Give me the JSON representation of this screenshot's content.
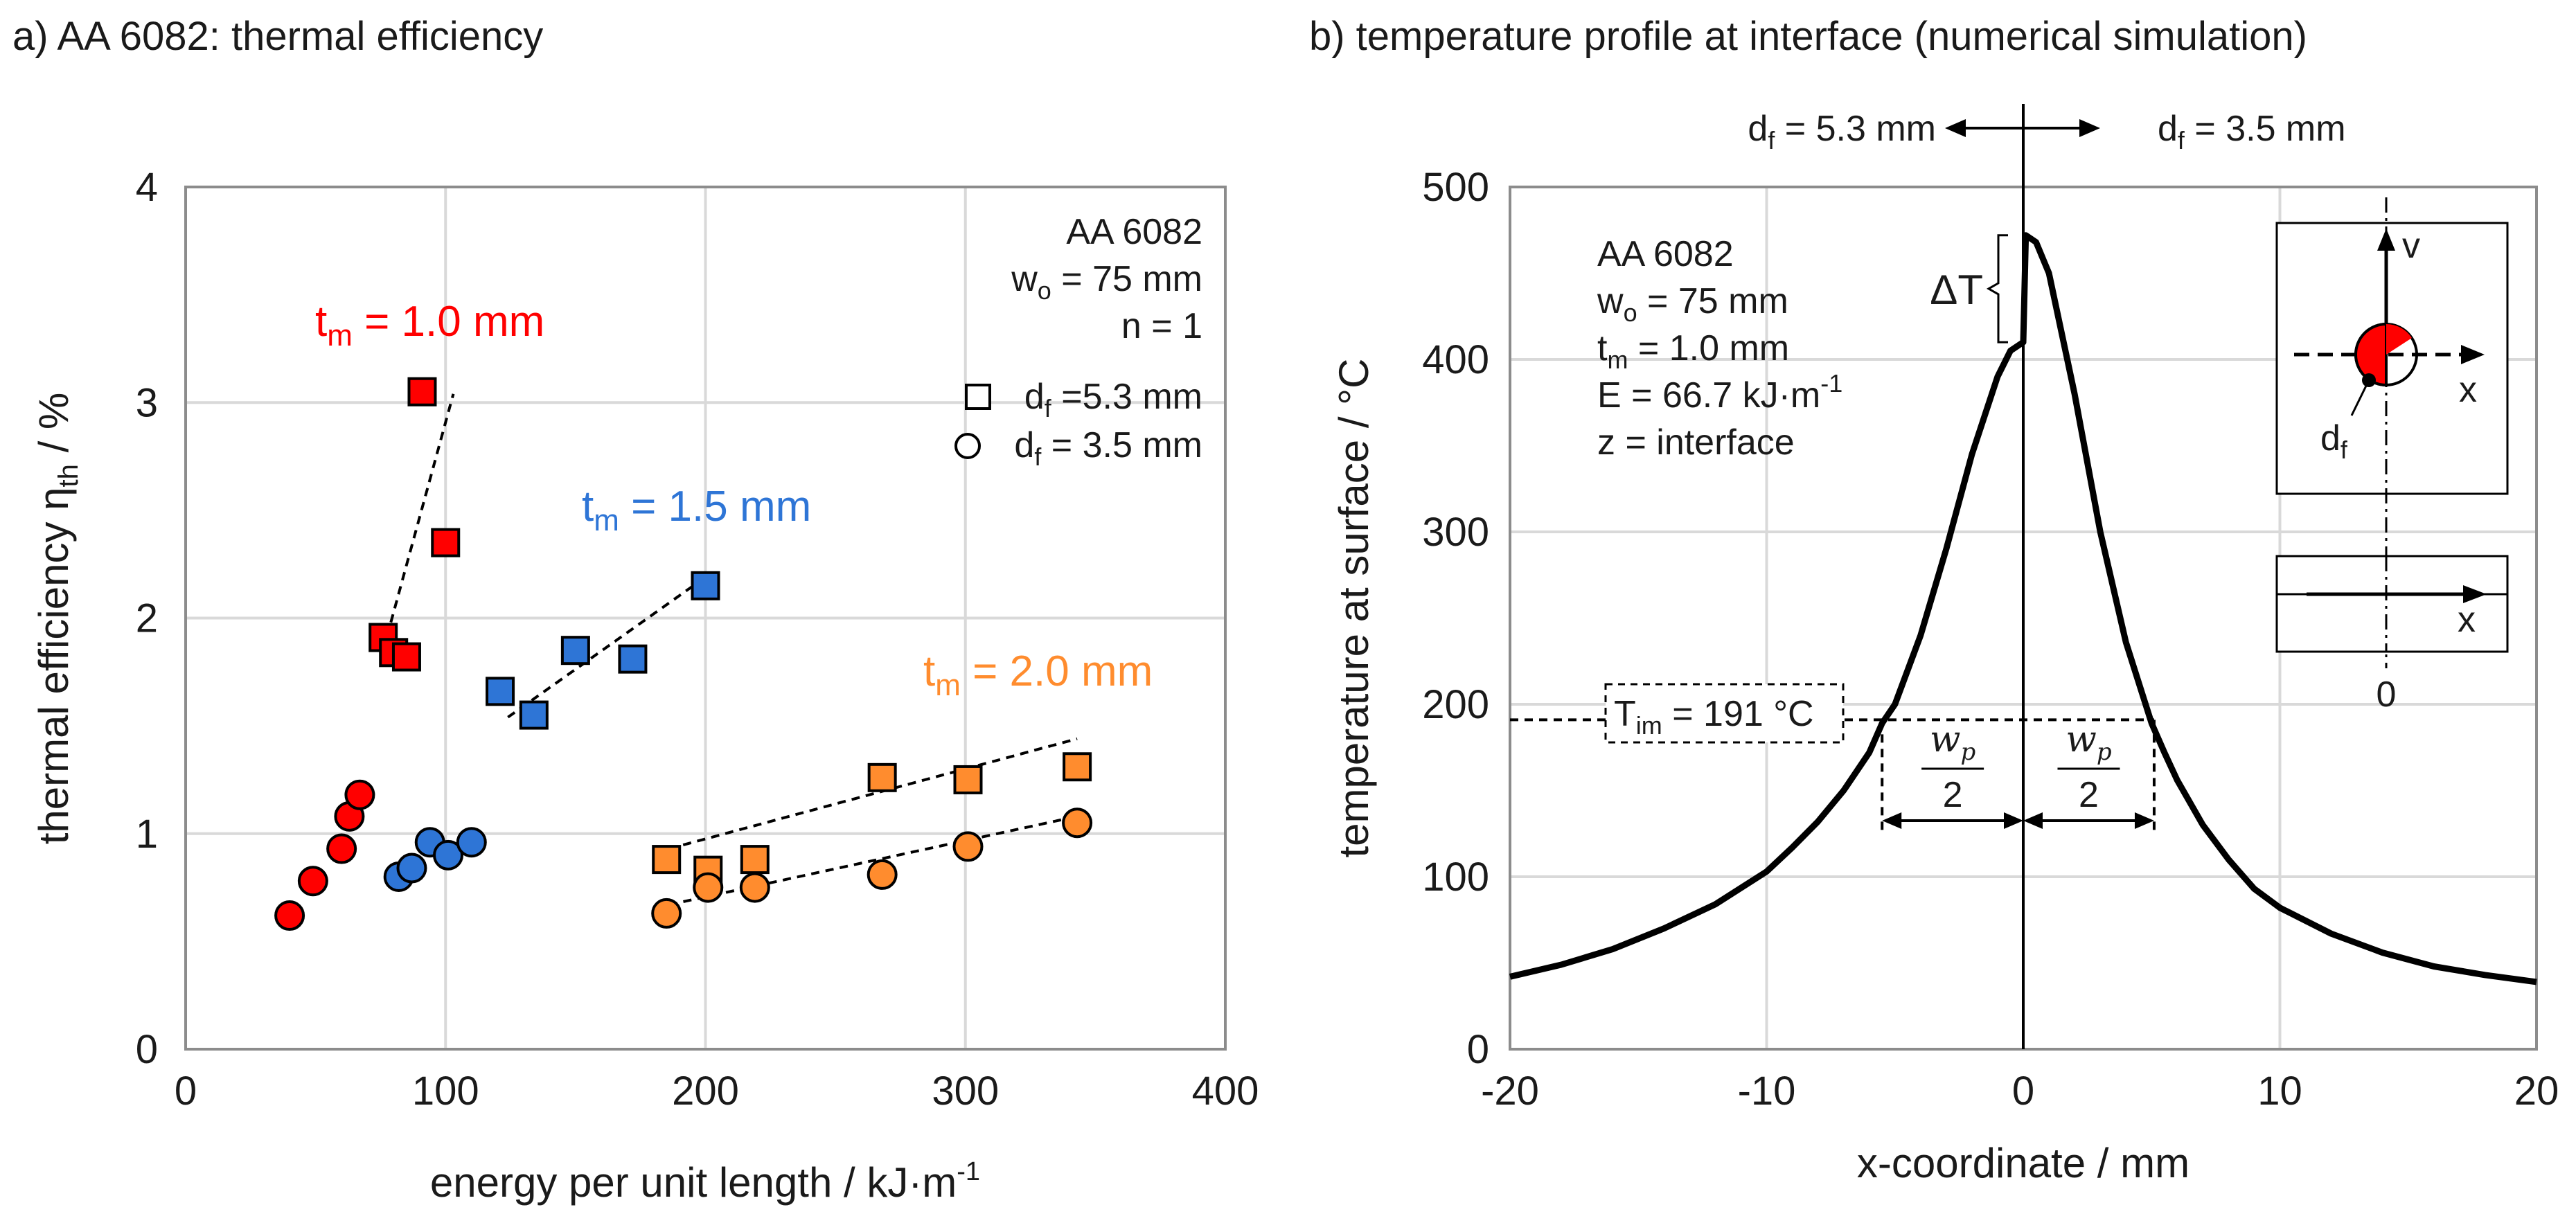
{
  "chart_data": [
    {
      "type": "scatter",
      "title": "a) AA 6082: thermal efficiency",
      "xlabel": "energy per unit length / kJ·m",
      "xlabel_sup": "-1",
      "ylabel_main": "thermal efficiency η",
      "ylabel_sub": "th",
      "ylabel_tail": " / %",
      "xlim": [
        0,
        400
      ],
      "ylim": [
        0,
        4
      ],
      "xticks": [
        0,
        100,
        200,
        300,
        400
      ],
      "yticks": [
        0,
        1,
        2,
        3,
        4
      ],
      "grid": true,
      "legend": {
        "block": [
          "AA 6082",
          "w",
          "o",
          " = 75 mm",
          "n = 1"
        ],
        "square_label": [
          "d",
          "f",
          " =5.3 mm"
        ],
        "circle_label": [
          "d",
          "f",
          " = 3.5 mm"
        ]
      },
      "series": [
        {
          "name": "tm = 1.0 mm, df = 5.3 mm",
          "group": "tm10",
          "marker": "square",
          "color": "#ff0000",
          "x": [
            76,
            80,
            85,
            91,
            100
          ],
          "y": [
            1.91,
            1.84,
            1.82,
            3.05,
            2.35
          ],
          "trend": [
            [
              76,
              1.85
            ],
            [
              103,
              3.04
            ]
          ]
        },
        {
          "name": "tm = 1.0 mm, df = 3.5 mm",
          "group": "tm10",
          "marker": "circle",
          "color": "#ff0000",
          "x": [
            40,
            49,
            60,
            63,
            67
          ],
          "y": [
            0.62,
            0.78,
            0.93,
            1.08,
            1.18
          ]
        },
        {
          "name": "tm = 1.5 mm, df = 5.3 mm",
          "group": "tm15",
          "marker": "square",
          "color": "#2e75d6",
          "x": [
            121,
            134,
            150,
            172,
            200
          ],
          "y": [
            1.66,
            1.55,
            1.85,
            1.81,
            2.15
          ],
          "trend": [
            [
              124,
              1.54
            ],
            [
              200,
              2.19
            ]
          ]
        },
        {
          "name": "tm = 1.5 mm, df = 3.5 mm",
          "group": "tm15",
          "marker": "circle",
          "color": "#2e75d6",
          "x": [
            82,
            87,
            94,
            101,
            110
          ],
          "y": [
            0.8,
            0.84,
            0.96,
            0.9,
            0.96
          ]
        },
        {
          "name": "tm = 2.0 mm, df = 5.3 mm",
          "group": "tm20",
          "marker": "square",
          "color": "#ff8c2e",
          "x": [
            185,
            201,
            219,
            268,
            301,
            343
          ],
          "y": [
            0.88,
            0.83,
            0.88,
            1.26,
            1.25,
            1.31
          ],
          "trend": [
            [
              186,
              0.93
            ],
            [
              343,
              1.44
            ]
          ]
        },
        {
          "name": "tm = 2.0 mm, df = 3.5 mm",
          "group": "tm20",
          "marker": "circle",
          "color": "#ff8c2e",
          "x": [
            185,
            201,
            219,
            268,
            301,
            343
          ],
          "y": [
            0.63,
            0.75,
            0.75,
            0.81,
            0.94,
            1.05
          ],
          "trend": [
            [
              186,
              0.67
            ],
            [
              343,
              1.08
            ]
          ]
        }
      ],
      "annotations": [
        {
          "id": "tm10",
          "text": [
            "t",
            "m",
            " = 1.0 mm"
          ],
          "color": "#ff0000"
        },
        {
          "id": "tm15",
          "text": [
            "t",
            "m",
            " = 1.5 mm"
          ],
          "color": "#2e75d6"
        },
        {
          "id": "tm20",
          "text": [
            "t",
            "m",
            " = 2.0 mm"
          ],
          "color": "#ff8c2e"
        }
      ]
    },
    {
      "type": "line",
      "title": "b) temperature profile at interface (numerical simulation)",
      "xlabel": "x-coordinate / mm",
      "ylabel": "temperature at surface / °C",
      "xlim": [
        -20,
        20
      ],
      "ylim": [
        0,
        500
      ],
      "xticks": [
        -20,
        -10,
        0,
        10,
        20
      ],
      "yticks": [
        0,
        100,
        200,
        300,
        400,
        500
      ],
      "grid": true,
      "series": [
        {
          "name": "temperature profile",
          "color": "#000000",
          "x": [
            -20,
            -18,
            -16,
            -14,
            -12,
            -10,
            -9,
            -8,
            -7,
            -6,
            -5.5,
            -5,
            -4,
            -3,
            -2,
            -1,
            -0.5,
            0,
            0.1,
            0.5,
            1,
            2,
            3,
            4,
            5,
            5.5,
            6,
            7,
            8,
            9,
            10,
            12,
            14,
            16,
            18,
            20
          ],
          "y": [
            42,
            49,
            58,
            70,
            84,
            103,
            117,
            132,
            150,
            172,
            189,
            200,
            240,
            290,
            345,
            390,
            405,
            410,
            472,
            468,
            450,
            380,
            300,
            236,
            189,
            172,
            156,
            130,
            110,
            93,
            82,
            67,
            56,
            48,
            43,
            39
          ]
        }
      ],
      "reference_line": {
        "y": 191,
        "label": [
          "T",
          "im",
          " = 191 °C"
        ],
        "x_from": -20,
        "x_to": 5.1
      },
      "wp_bracket": {
        "x_left": -5.5,
        "x_right": 5.1,
        "label_num": "w",
        "label_sub": "p",
        "label_den": "2"
      },
      "delta_t": {
        "label": "ΔT",
        "y_low": 410,
        "y_high": 472
      },
      "direction_labels": {
        "left": [
          "d",
          "f",
          " = 5.3 mm"
        ],
        "right": [
          "d",
          "f",
          " = 3.5 mm"
        ]
      },
      "info_block": {
        "line1": "AA 6082",
        "line2": [
          "w",
          "o",
          " = 75 mm"
        ],
        "line3": [
          "t",
          "m",
          " = 1.0 mm"
        ],
        "line4": [
          "E = 66.7 kJ·m",
          "-1"
        ],
        "line5": "z = interface"
      },
      "inset": {
        "v_label": "v",
        "x_label": "x",
        "x_label_bottom": "x",
        "df_label": [
          "d",
          "f"
        ],
        "zero_label": "0",
        "accent": "#ff0000"
      }
    }
  ]
}
